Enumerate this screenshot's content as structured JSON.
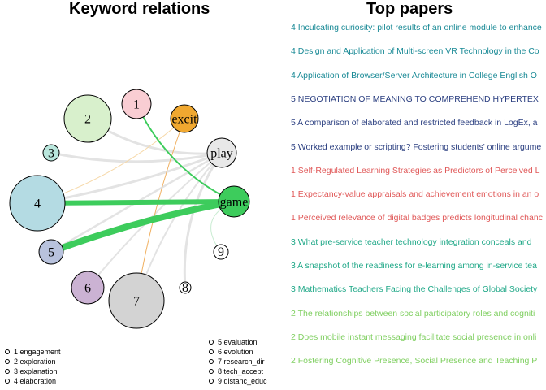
{
  "titles": {
    "left": "Keyword relations",
    "right": "Top papers"
  },
  "nodes": [
    {
      "id": "n1",
      "label": "1",
      "fill": "#f9cdd3"
    },
    {
      "id": "n2",
      "label": "2",
      "fill": "#d8f0cc"
    },
    {
      "id": "n3",
      "label": "3",
      "fill": "#b9e6dc"
    },
    {
      "id": "n4",
      "label": "4",
      "fill": "#b4dbe3"
    },
    {
      "id": "n5",
      "label": "5",
      "fill": "#b8c2dd"
    },
    {
      "id": "n6",
      "label": "6",
      "fill": "#cbb2d3"
    },
    {
      "id": "n7",
      "label": "7",
      "fill": "#d3d3d3"
    },
    {
      "id": "n8",
      "label": "8",
      "fill": "#ffffff"
    },
    {
      "id": "n9",
      "label": "9",
      "fill": "#ffffff"
    },
    {
      "id": "nexcit",
      "label": "excit",
      "fill": "#f0a830"
    },
    {
      "id": "nplay",
      "label": "play",
      "fill": "#e8e8e8"
    },
    {
      "id": "ngame",
      "label": "game",
      "fill": "#3dcc5c"
    }
  ],
  "edges": [
    {
      "from": "n2",
      "to": "nplay",
      "color": "#e3e3e3"
    },
    {
      "from": "n3",
      "to": "nplay",
      "color": "#e3e3e3"
    },
    {
      "from": "n4",
      "to": "nplay",
      "color": "#e3e3e3"
    },
    {
      "from": "n5",
      "to": "nplay",
      "color": "#e3e3e3"
    },
    {
      "from": "n6",
      "to": "nplay",
      "color": "#e3e3e3"
    },
    {
      "from": "n7",
      "to": "nplay",
      "color": "#e3e3e3"
    },
    {
      "from": "n8",
      "to": "nplay",
      "color": "#e3e3e3"
    },
    {
      "from": "n9",
      "to": "ngame",
      "color": "#c9ecd2"
    },
    {
      "from": "n4",
      "to": "nexcit",
      "color": "#f6d8a8"
    },
    {
      "from": "n7",
      "to": "nexcit",
      "color": "#f0b060"
    },
    {
      "from": "n1",
      "to": "ngame",
      "color": "#3dcc5c"
    },
    {
      "from": "n4",
      "to": "ngame",
      "color": "#3dcc5c"
    },
    {
      "from": "n5",
      "to": "ngame",
      "color": "#3dcc5c"
    }
  ],
  "legend": {
    "left": [
      "1 engagement",
      "2 exploration",
      "3 explanation",
      "4 elaboration"
    ],
    "right": [
      "5 evaluation",
      "6 evolution",
      "7 research_dir",
      "8 tech_accept",
      "9 distanc_educ"
    ]
  },
  "papers": [
    {
      "text": "4 Inculcating curiosity: pilot results of an online module to enhance",
      "color": "#1a8a96"
    },
    {
      "text": "4 Design and Application of Multi-screen VR Technology in the Co",
      "color": "#1a8a96"
    },
    {
      "text": "4 Application of Browser/Server Architecture in College English O",
      "color": "#1a8a96"
    },
    {
      "text": "5 NEGOTIATION OF MEANING TO COMPREHEND HYPERTEX",
      "color": "#2b3f80"
    },
    {
      "text": "5 A comparison of elaborated and restricted feedback in LogEx, a",
      "color": "#2b3f80"
    },
    {
      "text": "5 Worked example or scripting? Fostering students' online argume",
      "color": "#2b3f80"
    },
    {
      "text": "1 Self-Regulated Learning Strategies as Predictors of Perceived L",
      "color": "#e05858"
    },
    {
      "text": "1 Expectancy-value appraisals and achievement emotions in an o",
      "color": "#e05858"
    },
    {
      "text": "1 Perceived relevance of digital badges predicts longitudinal chanc",
      "color": "#e05858"
    },
    {
      "text": "3 What pre-service teacher technology integration conceals and",
      "color": "#20a888"
    },
    {
      "text": "3 A snapshot of the readiness for e-learning among in-service tea",
      "color": "#20a888"
    },
    {
      "text": "3 Mathematics Teachers Facing the Challenges of Global Society",
      "color": "#20a888"
    },
    {
      "text": "2 The relationships between social participatory roles and cogniti",
      "color": "#7fcf60"
    },
    {
      "text": "2 Does mobile instant messaging facilitate social presence in onli",
      "color": "#7fcf60"
    },
    {
      "text": "2 Fostering Cognitive Presence, Social Presence and Teaching P",
      "color": "#7fcf60"
    }
  ]
}
